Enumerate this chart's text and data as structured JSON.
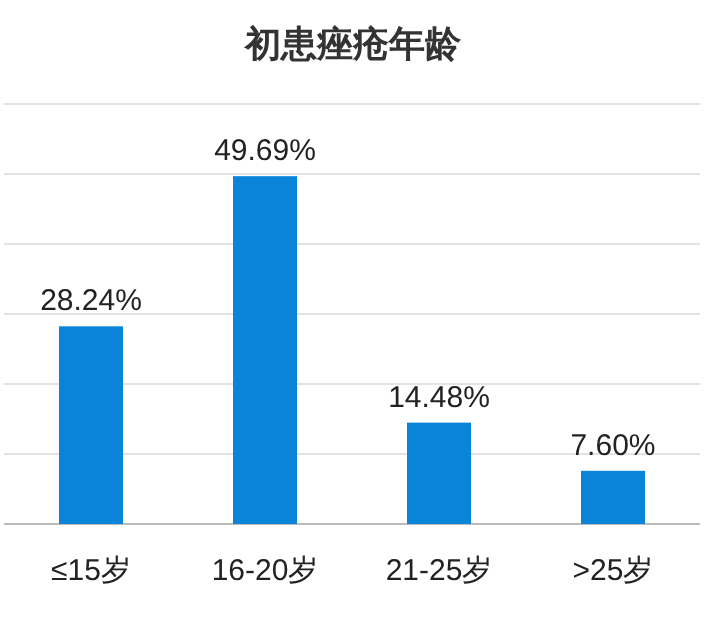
{
  "chart_data": {
    "type": "bar",
    "title": "初患痤疮年龄",
    "categories": [
      "≤15岁",
      "16-20岁",
      "21-25岁",
      ">25岁"
    ],
    "values": [
      28.24,
      49.69,
      14.48,
      7.6
    ],
    "value_labels": [
      "28.24%",
      "49.69%",
      "14.48%",
      "7.60%"
    ],
    "color": "#0a84d8",
    "ylim": [
      0,
      60
    ],
    "yticks": [
      {
        "value": 0,
        "label": null
      },
      {
        "value": 10,
        "label": null
      },
      {
        "value": 20,
        "label": null
      },
      {
        "value": 30,
        "label": null
      },
      {
        "value": 40,
        "label": null
      },
      {
        "value": 50,
        "label": null
      },
      {
        "value": 60,
        "label": null
      }
    ],
    "grid": "y",
    "tick_labels": "x"
  }
}
